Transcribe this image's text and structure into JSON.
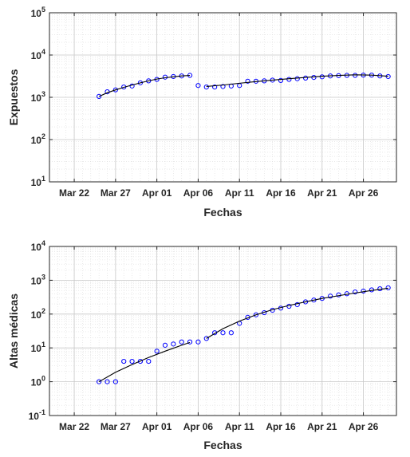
{
  "chart_data": [
    {
      "type": "scatter",
      "xlabel": "Fechas",
      "ylabel": "Expuestos",
      "yscale": "log",
      "ylim": [
        10,
        100000
      ],
      "xlim": [
        "2020-03-19",
        "2020-04-30"
      ],
      "grid": "on (major and minor)",
      "x_tick_labels": [
        "Mar 22",
        "Mar 27",
        "Apr 01",
        "Apr 06",
        "Apr 11",
        "Apr 16",
        "Apr 21",
        "Apr 26"
      ],
      "x_tick_dates": [
        "2020-03-22",
        "2020-03-27",
        "2020-04-01",
        "2020-04-06",
        "2020-04-11",
        "2020-04-16",
        "2020-04-21",
        "2020-04-26"
      ],
      "y_tick_labels": [
        {
          "base": "10",
          "exp": "1"
        },
        {
          "base": "10",
          "exp": "2"
        },
        {
          "base": "10",
          "exp": "3"
        },
        {
          "base": "10",
          "exp": "4"
        },
        {
          "base": "10",
          "exp": "5"
        }
      ],
      "series": [
        {
          "kind": "markers",
          "marker": "circle",
          "color": "#0000ff",
          "x": [
            "2020-03-25",
            "2020-03-26",
            "2020-03-27",
            "2020-03-28",
            "2020-03-29",
            "2020-03-30",
            "2020-03-31",
            "2020-04-01",
            "2020-04-02",
            "2020-04-03",
            "2020-04-04",
            "2020-04-05",
            "2020-04-06",
            "2020-04-07",
            "2020-04-08",
            "2020-04-09",
            "2020-04-10",
            "2020-04-11",
            "2020-04-12",
            "2020-04-13",
            "2020-04-14",
            "2020-04-15",
            "2020-04-16",
            "2020-04-17",
            "2020-04-18",
            "2020-04-19",
            "2020-04-20",
            "2020-04-21",
            "2020-04-22",
            "2020-04-23",
            "2020-04-24",
            "2020-04-25",
            "2020-04-26",
            "2020-04-27",
            "2020-04-28",
            "2020-04-29"
          ],
          "y": [
            1050,
            1350,
            1500,
            1750,
            1850,
            2200,
            2450,
            2650,
            3000,
            3100,
            3200,
            3300,
            1900,
            1750,
            1750,
            1800,
            1850,
            1900,
            2400,
            2400,
            2450,
            2550,
            2500,
            2650,
            2750,
            2850,
            2950,
            3050,
            3200,
            3250,
            3300,
            3300,
            3350,
            3350,
            3200,
            3100
          ]
        },
        {
          "kind": "fit-line",
          "color": "#000000",
          "segments": [
            {
              "x": [
                "2020-03-25",
                "2020-03-26",
                "2020-03-27",
                "2020-03-28",
                "2020-03-29",
                "2020-03-30",
                "2020-03-31",
                "2020-04-01",
                "2020-04-02",
                "2020-04-03",
                "2020-04-04",
                "2020-04-05"
              ],
              "y": [
                1050,
                1280,
                1500,
                1720,
                1950,
                2200,
                2450,
                2700,
                2900,
                3050,
                3200,
                3300
              ]
            },
            {
              "x": [
                "2020-04-07",
                "2020-04-09",
                "2020-04-11",
                "2020-04-13",
                "2020-04-15",
                "2020-04-17",
                "2020-04-19",
                "2020-04-21",
                "2020-04-23",
                "2020-04-25",
                "2020-04-27",
                "2020-04-29"
              ],
              "y": [
                1800,
                1950,
                2150,
                2350,
                2550,
                2750,
                2950,
                3150,
                3300,
                3400,
                3350,
                3150
              ]
            }
          ]
        }
      ]
    },
    {
      "type": "scatter",
      "xlabel": "Fechas",
      "ylabel": "Altas médicas",
      "yscale": "log",
      "ylim": [
        0.1,
        10000
      ],
      "xlim": [
        "2020-03-19",
        "2020-04-30"
      ],
      "grid": "on (major and minor)",
      "x_tick_labels": [
        "Mar 22",
        "Mar 27",
        "Apr 01",
        "Apr 06",
        "Apr 11",
        "Apr 16",
        "Apr 21",
        "Apr 26"
      ],
      "x_tick_dates": [
        "2020-03-22",
        "2020-03-27",
        "2020-04-01",
        "2020-04-06",
        "2020-04-11",
        "2020-04-16",
        "2020-04-21",
        "2020-04-26"
      ],
      "y_tick_labels": [
        {
          "base": "10",
          "exp": "-1"
        },
        {
          "base": "10",
          "exp": "0"
        },
        {
          "base": "10",
          "exp": "1"
        },
        {
          "base": "10",
          "exp": "2"
        },
        {
          "base": "10",
          "exp": "3"
        },
        {
          "base": "10",
          "exp": "4"
        }
      ],
      "series": [
        {
          "kind": "markers",
          "marker": "circle",
          "color": "#0000ff",
          "x": [
            "2020-03-25",
            "2020-03-26",
            "2020-03-27",
            "2020-03-28",
            "2020-03-29",
            "2020-03-30",
            "2020-03-31",
            "2020-04-01",
            "2020-04-02",
            "2020-04-03",
            "2020-04-04",
            "2020-04-05",
            "2020-04-06",
            "2020-04-07",
            "2020-04-08",
            "2020-04-09",
            "2020-04-10",
            "2020-04-11",
            "2020-04-12",
            "2020-04-13",
            "2020-04-14",
            "2020-04-15",
            "2020-04-16",
            "2020-04-17",
            "2020-04-18",
            "2020-04-19",
            "2020-04-20",
            "2020-04-21",
            "2020-04-22",
            "2020-04-23",
            "2020-04-24",
            "2020-04-25",
            "2020-04-26",
            "2020-04-27",
            "2020-04-28",
            "2020-04-29"
          ],
          "y": [
            1,
            1,
            1,
            4,
            4,
            4,
            4,
            8,
            12,
            13,
            15,
            15,
            15,
            19,
            28,
            28,
            28,
            53,
            80,
            95,
            110,
            130,
            150,
            170,
            190,
            230,
            260,
            290,
            340,
            370,
            400,
            450,
            480,
            520,
            560,
            600
          ]
        },
        {
          "kind": "fit-line",
          "color": "#000000",
          "segments": [
            {
              "x": [
                "2020-03-25",
                "2020-03-27",
                "2020-03-29",
                "2020-03-31",
                "2020-04-02",
                "2020-04-04",
                "2020-04-05"
              ],
              "y": [
                1,
                1.9,
                3.2,
                5.2,
                8,
                12,
                14.5
              ]
            },
            {
              "x": [
                "2020-04-07",
                "2020-04-09",
                "2020-04-11",
                "2020-04-13",
                "2020-04-15",
                "2020-04-17",
                "2020-04-19",
                "2020-04-21",
                "2020-04-23",
                "2020-04-25",
                "2020-04-27",
                "2020-04-29"
              ],
              "y": [
                19,
                37,
                62,
                95,
                135,
                180,
                230,
                290,
                350,
                420,
                500,
                580
              ]
            }
          ]
        }
      ]
    }
  ]
}
